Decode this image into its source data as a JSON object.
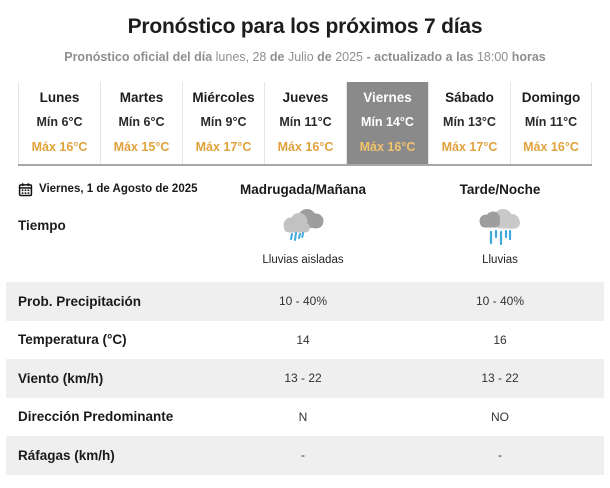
{
  "header": {
    "title": "Pronóstico para los próximos 7 días",
    "subtitle_segments": [
      {
        "text": "Pronóstico oficial del día ",
        "bold": true
      },
      {
        "text": "lunes, 28",
        "bold": false
      },
      {
        "text": " de ",
        "bold": true
      },
      {
        "text": "Julio",
        "bold": false
      },
      {
        "text": " de ",
        "bold": true
      },
      {
        "text": "2025",
        "bold": false
      },
      {
        "text": " - actualizado a las ",
        "bold": true
      },
      {
        "text": "18:00",
        "bold": false
      },
      {
        "text": " horas",
        "bold": true
      }
    ]
  },
  "week": {
    "selected_day": "Viernes",
    "days": [
      {
        "name": "Lunes",
        "min": "Mín 6°C",
        "max": "Máx 16°C",
        "selected": false
      },
      {
        "name": "Martes",
        "min": "Mín 6°C",
        "max": "Máx 15°C",
        "selected": false
      },
      {
        "name": "Miércoles",
        "min": "Mín 9°C",
        "max": "Máx 17°C",
        "selected": false
      },
      {
        "name": "Jueves",
        "min": "Mín 11°C",
        "max": "Máx 16°C",
        "selected": false
      },
      {
        "name": "Viernes",
        "min": "Mín 14°C",
        "max": "Máx 16°C",
        "selected": true
      },
      {
        "name": "Sábado",
        "min": "Mín 13°C",
        "max": "Máx 17°C",
        "selected": false
      },
      {
        "name": "Domingo",
        "min": "Mín 11°C",
        "max": "Máx 16°C",
        "selected": false
      }
    ]
  },
  "detail": {
    "date_label": "Viernes, 1 de Agosto de 2025",
    "columns": [
      "Madrugada/Mañana",
      "Tarde/Noche"
    ],
    "weather": {
      "label": "Tiempo",
      "cells": [
        {
          "icon": "rain-cloud-icon",
          "caption": "Lluvias aisladas"
        },
        {
          "icon": "rain-cloud-icon",
          "caption": "Lluvias"
        }
      ]
    },
    "rows": [
      {
        "label": "Prob. Precipitación",
        "values": [
          "10 - 40%",
          "10 - 40%"
        ],
        "shaded": true
      },
      {
        "label": "Temperatura (°C)",
        "values": [
          "14",
          "16"
        ],
        "shaded": false
      },
      {
        "label": "Viento (km/h)",
        "values": [
          "13 - 22",
          "13 - 22"
        ],
        "shaded": true
      },
      {
        "label": "Dirección Predominante",
        "values": [
          "N",
          "NO"
        ],
        "shaded": false
      },
      {
        "label": "Ráfagas (km/h)",
        "values": [
          "-",
          "-"
        ],
        "shaded": true
      }
    ]
  },
  "colors": {
    "max_orange": "#DFA23C",
    "selected_max_orange": "#F2C36D",
    "selected_day_bg": "#8A8A8A",
    "shaded_row_bg": "#EFEFEF",
    "subtitle_gray": "#8F8F8F",
    "rain_blue": "#3FA9DC",
    "cloud_dark": "#9E9E9E",
    "cloud_light": "#C2C2C2"
  }
}
